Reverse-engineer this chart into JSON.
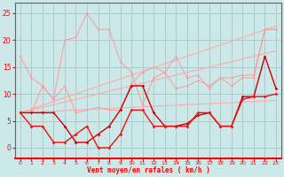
{
  "x": [
    0,
    1,
    2,
    3,
    4,
    5,
    6,
    7,
    8,
    9,
    10,
    11,
    12,
    13,
    14,
    15,
    16,
    17,
    18,
    19,
    20,
    21,
    22,
    23
  ],
  "trend1_y": [
    6.5,
    7.0,
    7.5,
    8.0,
    8.5,
    9.0,
    9.5,
    10.0,
    10.5,
    11.0,
    11.5,
    12.0,
    12.5,
    13.0,
    13.5,
    14.0,
    14.5,
    15.0,
    15.5,
    16.0,
    16.5,
    17.0,
    17.5,
    18.0
  ],
  "trend2_y": [
    6.5,
    7.2,
    7.9,
    8.6,
    9.3,
    10.0,
    10.7,
    11.4,
    12.1,
    12.8,
    13.5,
    14.2,
    14.9,
    15.6,
    16.3,
    17.0,
    17.7,
    18.4,
    19.1,
    19.8,
    20.5,
    21.2,
    21.9,
    22.6
  ],
  "trend3_y": [
    6.5,
    6.6,
    6.7,
    6.8,
    6.9,
    7.0,
    7.1,
    7.2,
    7.3,
    7.4,
    7.5,
    7.6,
    7.7,
    7.8,
    7.9,
    8.0,
    8.1,
    8.2,
    8.3,
    8.4,
    8.5,
    8.6,
    8.7,
    8.8
  ],
  "jagged1_y": [
    17,
    13,
    11.5,
    9,
    11.5,
    6.5,
    7,
    7.5,
    7,
    7,
    12,
    14,
    15,
    14,
    17,
    13,
    13.5,
    11,
    13,
    13,
    13.5,
    13.5,
    22,
    22
  ],
  "jagged2_y": [
    6.5,
    6.5,
    11.5,
    9,
    20,
    20.5,
    25,
    22,
    22,
    16,
    14,
    8,
    13,
    14,
    11,
    11.5,
    12.5,
    11.5,
    13,
    11.5,
    13,
    13,
    22,
    22
  ],
  "dark1_y": [
    6.5,
    6.5,
    6.5,
    6.5,
    4,
    1,
    1,
    2.5,
    4,
    7,
    11.5,
    11.5,
    6.5,
    4,
    4,
    4.5,
    6,
    6.5,
    4,
    4,
    9.5,
    9.5,
    17,
    11
  ],
  "dark2_y": [
    6.5,
    4,
    4,
    1,
    1,
    2.5,
    4,
    0,
    0,
    2.5,
    7,
    7,
    4,
    4,
    4,
    4,
    6.5,
    6.5,
    4,
    4,
    9,
    9.5,
    9.5,
    10
  ],
  "bg_color": "#cce8e8",
  "grid_color": "#aacccc",
  "xlabel": "Vent moyen/en rafales ( km/h )",
  "ylim": [
    -2,
    27
  ],
  "xlim": [
    -0.5,
    23.5
  ],
  "yticks": [
    0,
    5,
    10,
    15,
    20,
    25
  ],
  "xticks": [
    0,
    1,
    2,
    3,
    4,
    5,
    6,
    7,
    8,
    9,
    10,
    11,
    12,
    13,
    14,
    15,
    16,
    17,
    18,
    19,
    20,
    21,
    22,
    23
  ]
}
